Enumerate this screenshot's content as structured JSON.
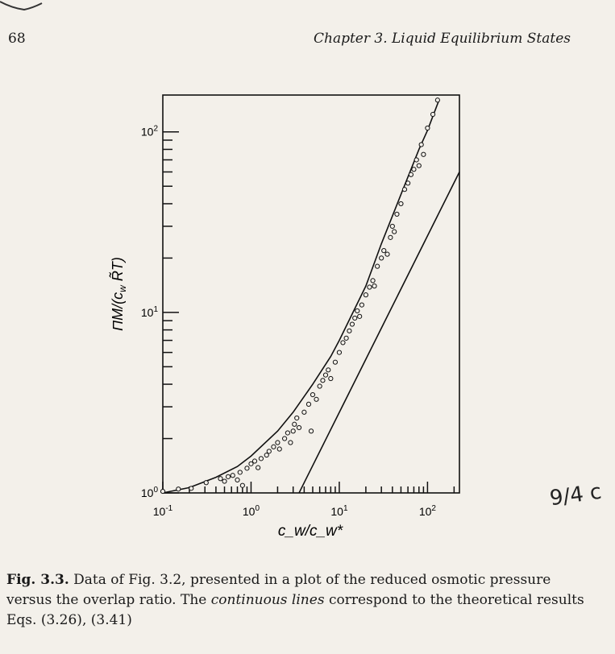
{
  "header": {
    "page_number": "68",
    "chapter": "Chapter 3.  Liquid Equilibrium States"
  },
  "caption": {
    "label": "Fig. 3.3.",
    "line1": " Data of Fig. 3.2, presented in a plot of the reduced osmotic pressure",
    "line2a": "versus the overlap ratio. The ",
    "line2_italic": "continuous lines",
    "line2b": " correspond to the theoretical results",
    "line3": "Eqs. (3.26), (3.41)"
  },
  "handwriting": "9/4 c",
  "chart_data": {
    "type": "scatter",
    "xscale": "log",
    "yscale": "log",
    "xlim": [
      0.1,
      230
    ],
    "ylim": [
      1,
      160
    ],
    "xlabel": "c_w/c_w*",
    "ylabel": "ΠM/(c_w R̃ T)",
    "xticks": [
      {
        "v": 0.1,
        "label": "10-1",
        "base": "10",
        "exp": "-1"
      },
      {
        "v": 1,
        "label": "100",
        "base": "10",
        "exp": "0"
      },
      {
        "v": 10,
        "label": "101",
        "base": "10",
        "exp": "1"
      },
      {
        "v": 100,
        "label": "102",
        "base": "10",
        "exp": "2"
      }
    ],
    "yticks": [
      {
        "v": 1,
        "base": "10",
        "exp": "0"
      },
      {
        "v": 10,
        "base": "10",
        "exp": "1"
      },
      {
        "v": 100,
        "base": "10",
        "exp": "2"
      }
    ],
    "theory_curve": [
      [
        0.1,
        1.0
      ],
      [
        0.2,
        1.07
      ],
      [
        0.4,
        1.22
      ],
      [
        0.7,
        1.4
      ],
      [
        1,
        1.6
      ],
      [
        2,
        2.2
      ],
      [
        3,
        2.8
      ],
      [
        5,
        4.0
      ],
      [
        8,
        5.7
      ],
      [
        10,
        7
      ],
      [
        15,
        10.5
      ],
      [
        20,
        14
      ],
      [
        30,
        24
      ],
      [
        50,
        45
      ],
      [
        80,
        80
      ],
      [
        100,
        102
      ],
      [
        135,
        150
      ]
    ],
    "theory_line": [
      [
        3.5,
        1.0
      ],
      [
        230,
        60
      ]
    ],
    "points": [
      [
        0.1,
        1.02
      ],
      [
        0.15,
        1.05
      ],
      [
        0.21,
        1.06
      ],
      [
        0.31,
        1.14
      ],
      [
        0.45,
        1.2
      ],
      [
        0.5,
        1.16
      ],
      [
        0.55,
        1.23
      ],
      [
        0.62,
        1.25
      ],
      [
        0.7,
        1.18
      ],
      [
        0.75,
        1.3
      ],
      [
        0.8,
        1.1
      ],
      [
        0.9,
        1.37
      ],
      [
        1.0,
        1.45
      ],
      [
        1.1,
        1.5
      ],
      [
        1.2,
        1.38
      ],
      [
        1.3,
        1.55
      ],
      [
        1.5,
        1.62
      ],
      [
        1.6,
        1.7
      ],
      [
        1.8,
        1.8
      ],
      [
        2.0,
        1.9
      ],
      [
        2.1,
        1.75
      ],
      [
        2.4,
        2.0
      ],
      [
        2.6,
        2.15
      ],
      [
        2.8,
        1.9
      ],
      [
        3.0,
        2.2
      ],
      [
        3.1,
        2.4
      ],
      [
        3.3,
        2.6
      ],
      [
        3.5,
        2.3
      ],
      [
        4.0,
        2.8
      ],
      [
        4.5,
        3.1
      ],
      [
        4.8,
        2.2
      ],
      [
        5.0,
        3.5
      ],
      [
        5.5,
        3.3
      ],
      [
        6.0,
        3.9
      ],
      [
        6.5,
        4.2
      ],
      [
        7.0,
        4.5
      ],
      [
        7.5,
        4.8
      ],
      [
        8.0,
        4.3
      ],
      [
        9.0,
        5.3
      ],
      [
        10,
        6.0
      ],
      [
        11,
        6.8
      ],
      [
        12,
        7.2
      ],
      [
        13,
        7.9
      ],
      [
        14,
        8.6
      ],
      [
        15,
        9.3
      ],
      [
        16,
        10.2
      ],
      [
        17,
        9.5
      ],
      [
        18,
        11
      ],
      [
        20,
        12.5
      ],
      [
        22,
        13.8
      ],
      [
        24,
        15
      ],
      [
        25,
        14
      ],
      [
        27,
        18
      ],
      [
        30,
        20
      ],
      [
        32,
        22
      ],
      [
        35,
        21
      ],
      [
        38,
        26
      ],
      [
        40,
        30
      ],
      [
        42,
        28
      ],
      [
        45,
        35
      ],
      [
        50,
        40
      ],
      [
        55,
        48
      ],
      [
        60,
        52
      ],
      [
        65,
        58
      ],
      [
        70,
        62
      ],
      [
        75,
        70
      ],
      [
        80,
        65
      ],
      [
        85,
        85
      ],
      [
        90,
        75
      ],
      [
        100,
        105
      ],
      [
        115,
        125
      ],
      [
        130,
        150
      ]
    ]
  }
}
